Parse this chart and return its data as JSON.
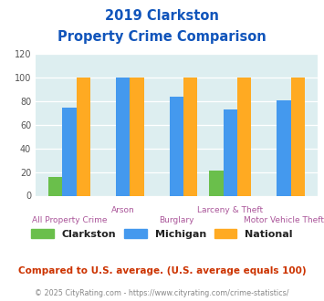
{
  "title_line1": "2019 Clarkston",
  "title_line2": "Property Crime Comparison",
  "categories": [
    "All Property Crime",
    "Arson",
    "Burglary",
    "Larceny & Theft",
    "Motor Vehicle Theft"
  ],
  "clarkston": [
    16,
    0,
    0,
    21,
    0
  ],
  "michigan": [
    75,
    100,
    84,
    73,
    81
  ],
  "national": [
    100,
    100,
    100,
    100,
    100
  ],
  "color_clarkston": "#6abf4b",
  "color_michigan": "#4499ee",
  "color_national": "#ffaa22",
  "ylim": [
    0,
    120
  ],
  "yticks": [
    0,
    20,
    40,
    60,
    80,
    100,
    120
  ],
  "title_color": "#1155bb",
  "cat_label_color": "#aa5599",
  "legend_label_color": "#222222",
  "footnote1_color": "#cc3300",
  "footnote2_color": "#888888",
  "bg_color": "#ddeef0",
  "fig_bg_color": "#ffffff",
  "footnote1": "Compared to U.S. average. (U.S. average equals 100)",
  "footnote2": "© 2025 CityRating.com - https://www.cityrating.com/crime-statistics/"
}
